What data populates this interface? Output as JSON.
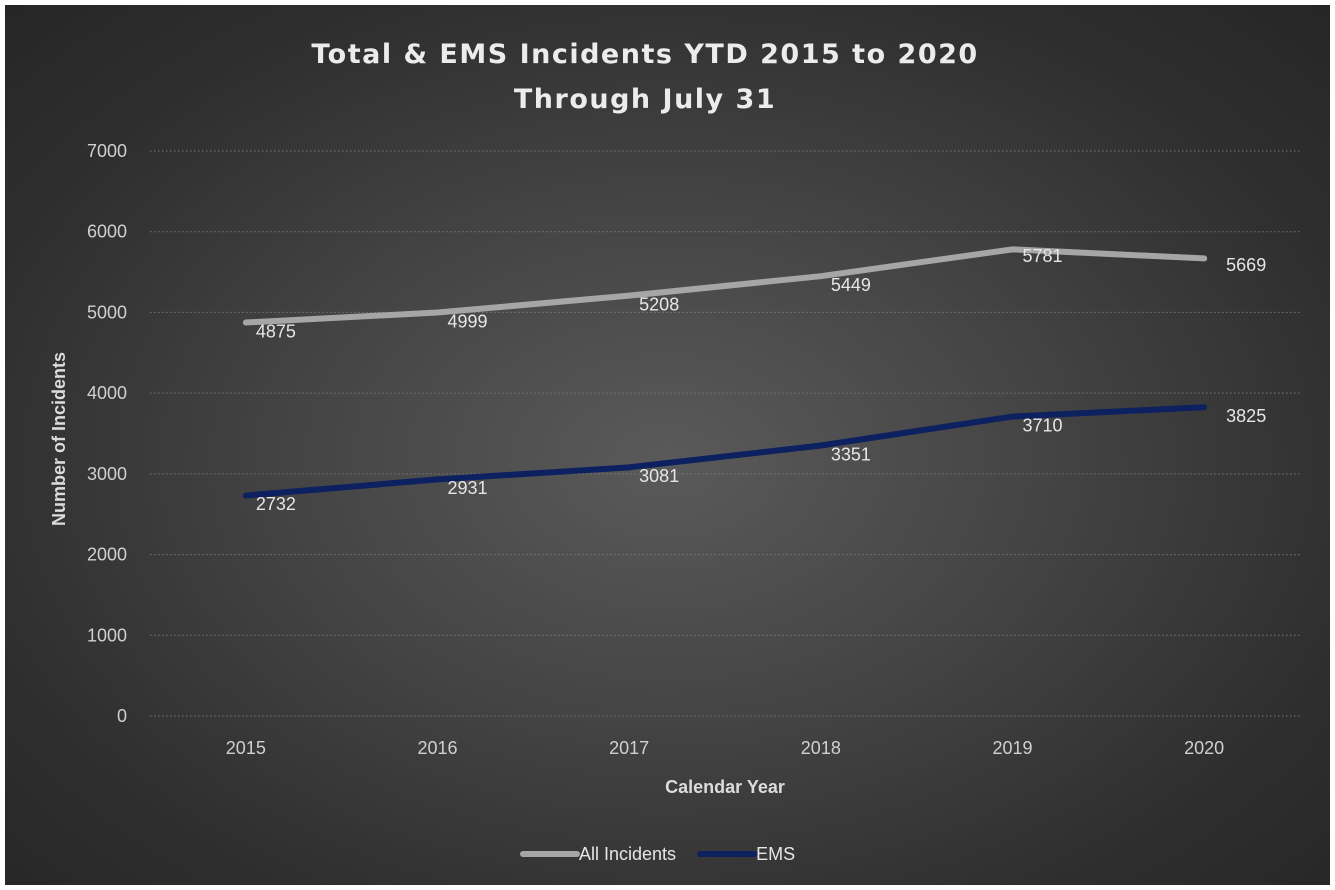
{
  "chart_data": {
    "type": "line",
    "title": [
      "Total & EMS Incidents YTD 2015 to 2020",
      "Through July 31"
    ],
    "xlabel": "Calendar Year",
    "ylabel": "Number of Incidents",
    "categories": [
      "2015",
      "2016",
      "2017",
      "2018",
      "2019",
      "2020"
    ],
    "ylim": [
      0,
      7000
    ],
    "yticks": [
      0,
      1000,
      2000,
      3000,
      4000,
      5000,
      6000,
      7000
    ],
    "grid": true,
    "legend_position": "bottom",
    "series": [
      {
        "name": "All Incidents",
        "values": [
          4875,
          4999,
          5208,
          5449,
          5781,
          5669
        ],
        "color": "#a6a6a6"
      },
      {
        "name": "EMS",
        "values": [
          2732,
          2931,
          3081,
          3351,
          3710,
          3825
        ],
        "color": "#0d2060"
      }
    ]
  }
}
